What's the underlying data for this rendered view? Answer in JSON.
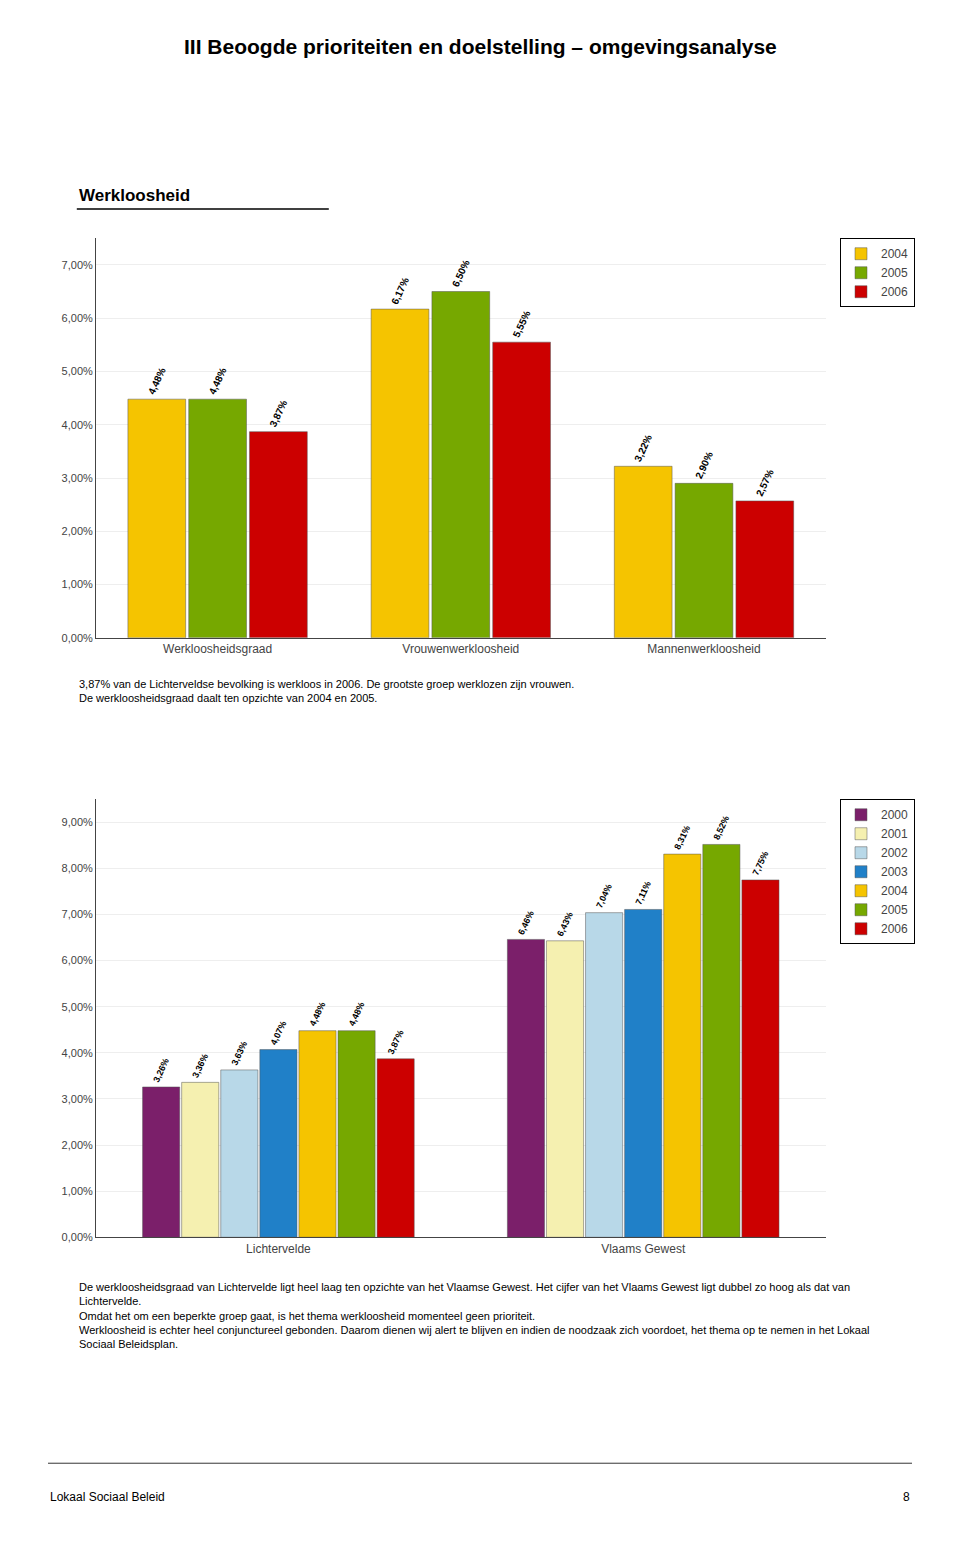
{
  "title": "III Beoogde prioriteiten en doelstelling – omgevingsanalyse",
  "subtitle": "Werkloosheid",
  "annotations": [
    "Lokaal Sociaal Beleid",
    "8"
  ],
  "chart_data": [
    {
      "type": "bar",
      "categories": [
        "Werkloosheidsgraad",
        "Vrouwenwerkloosheid",
        "Mannenwerkloosheid"
      ],
      "series": [
        {
          "name": "2004",
          "color": "#F5C400",
          "values": [
            4.48,
            6.17,
            3.22
          ],
          "value_labels": [
            "4,48%",
            "6,17%",
            "3,22%"
          ]
        },
        {
          "name": "2005",
          "color": "#76A800",
          "values": [
            4.48,
            6.5,
            2.9
          ],
          "value_labels": [
            "4,48%",
            "6,50%",
            "2,90%"
          ]
        },
        {
          "name": "2006",
          "color": "#CC0000",
          "values": [
            3.87,
            5.55,
            2.57
          ],
          "value_labels": [
            "3,87%",
            "5,55%",
            "2,57%"
          ]
        }
      ],
      "ylim": [
        0,
        7.5
      ],
      "yticks": [
        {
          "value": 0,
          "label": "0,00%"
        },
        {
          "value": 1,
          "label": "1,00%"
        },
        {
          "value": 2,
          "label": "2,00%"
        },
        {
          "value": 3,
          "label": "3,00%"
        },
        {
          "value": 4,
          "label": "4,00%"
        },
        {
          "value": 5,
          "label": "5,00%"
        },
        {
          "value": 6,
          "label": "6,00%"
        },
        {
          "value": 7,
          "label": "7,00%"
        }
      ],
      "grid": true,
      "legend": "right",
      "data_labels": true,
      "annotations": [
        "3,87% van de Lichterveldse bevolking is werkloos in 2006. De grootste groep werklozen zijn vrouwen.\nDe werkloosheidsgraad daalt ten opzichte van 2004 en 2005."
      ]
    },
    {
      "type": "bar",
      "categories": [
        "Lichtervelde",
        "Vlaams Gewest"
      ],
      "series": [
        {
          "name": "2000",
          "color": "#7B1F6A",
          "values": [
            3.26,
            6.46
          ],
          "value_labels": [
            "3,26%",
            "6,46%"
          ]
        },
        {
          "name": "2001",
          "color": "#F5F0B0",
          "values": [
            3.36,
            6.43
          ],
          "value_labels": [
            "3,36%",
            "6,43%"
          ]
        },
        {
          "name": "2002",
          "color": "#B8D8E8",
          "values": [
            3.63,
            7.04
          ],
          "value_labels": [
            "3,63%",
            "7,04%"
          ]
        },
        {
          "name": "2003",
          "color": "#2080C8",
          "values": [
            4.07,
            7.11
          ],
          "value_labels": [
            "4,07%",
            "7,11%"
          ]
        },
        {
          "name": "2004",
          "color": "#F5C400",
          "values": [
            4.48,
            8.31
          ],
          "value_labels": [
            "4,48%",
            "8,31%"
          ]
        },
        {
          "name": "2005",
          "color": "#76A800",
          "values": [
            4.48,
            8.52
          ],
          "value_labels": [
            "4,48%",
            "8,52%"
          ]
        },
        {
          "name": "2006",
          "color": "#CC0000",
          "values": [
            3.87,
            7.75
          ],
          "value_labels": [
            "3,87%",
            "7,75%"
          ]
        }
      ],
      "ylim": [
        0,
        9.5
      ],
      "yticks": [
        {
          "value": 0,
          "label": "0,00%"
        },
        {
          "value": 1,
          "label": "1,00%"
        },
        {
          "value": 2,
          "label": "2,00%"
        },
        {
          "value": 3,
          "label": "3,00%"
        },
        {
          "value": 4,
          "label": "4,00%"
        },
        {
          "value": 5,
          "label": "5,00%"
        },
        {
          "value": 6,
          "label": "6,00%"
        },
        {
          "value": 7,
          "label": "7,00%"
        },
        {
          "value": 8,
          "label": "8,00%"
        },
        {
          "value": 9,
          "label": "9,00%"
        }
      ],
      "grid": true,
      "legend": "right",
      "data_labels": true,
      "annotations": [
        "De werkloosheidsgraad van Lichtervelde ligt heel laag ten opzichte van het Vlaamse Gewest. Het cijfer van het Vlaams Gewest ligt dubbel zo hoog als dat van\nLichtervelde.\nOmdat het om een beperkte groep gaat, is het thema werkloosheid momenteel geen prioriteit.\nWerkloosheid is echter heel conjunctureel gebonden. Daarom dienen wij alert te blijven en indien de noodzaak zich voordoet, het thema op te nemen in het Lokaal\nSociaal Beleidsplan."
      ]
    }
  ]
}
